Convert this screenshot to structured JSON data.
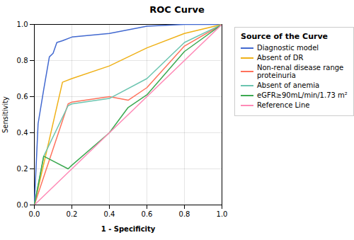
{
  "chart_data": {
    "type": "line",
    "title": "ROC Curve",
    "xlabel": "1 - Specificity",
    "ylabel": "Sensitivity",
    "legend_title": "Source of the Curve",
    "legend": "right",
    "grid": true,
    "series": [
      {
        "name": "Diagnostic model",
        "x": [
          0.0,
          0.02,
          0.05,
          0.08,
          0.1,
          0.12,
          0.15,
          0.2,
          0.4,
          0.6,
          0.8,
          1.0
        ],
        "values": [
          0.0,
          0.45,
          0.64,
          0.82,
          0.84,
          0.9,
          0.91,
          0.93,
          0.95,
          0.99,
          1.0,
          1.0
        ]
      },
      {
        "name": "Absent of DR",
        "x": [
          0.0,
          0.15,
          0.2,
          0.4,
          0.6,
          0.8,
          1.0
        ],
        "values": [
          0.0,
          0.68,
          0.7,
          0.77,
          0.87,
          0.95,
          1.0
        ]
      },
      {
        "name": "Non-renal disease range\nproteinuria",
        "x": [
          0.0,
          0.18,
          0.2,
          0.4,
          0.5,
          0.6,
          0.8,
          1.0
        ],
        "values": [
          0.0,
          0.56,
          0.57,
          0.6,
          0.58,
          0.65,
          0.88,
          1.0
        ]
      },
      {
        "name": "Absent of anemia",
        "x": [
          0.0,
          0.05,
          0.18,
          0.2,
          0.4,
          0.6,
          0.8,
          1.0
        ],
        "values": [
          0.0,
          0.27,
          0.55,
          0.56,
          0.59,
          0.7,
          0.9,
          1.0
        ]
      },
      {
        "name": "eGFR≥90mL/min/1.73 m²",
        "x": [
          0.0,
          0.05,
          0.18,
          0.2,
          0.4,
          0.5,
          0.6,
          0.8,
          1.0
        ],
        "values": [
          0.0,
          0.27,
          0.2,
          0.22,
          0.4,
          0.54,
          0.61,
          0.85,
          1.0
        ]
      },
      {
        "name": "Reference Line",
        "x": [
          0.0,
          1.0
        ],
        "values": [
          0.0,
          1.0
        ]
      }
    ],
    "xlim": [
      0.0,
      1.0
    ],
    "ylim": [
      0.0,
      1.0
    ],
    "xticks": [
      {
        "value": 0.0,
        "label": "0.0"
      },
      0.2,
      0.4,
      0.6,
      0.8,
      {
        "value": 1.0,
        "label": "1.0"
      }
    ],
    "yticks": [
      {
        "value": 0.0,
        "label": "0.0"
      },
      0.2,
      0.4,
      0.6,
      0.8,
      {
        "value": 1.0,
        "label": "1.0"
      }
    ]
  }
}
